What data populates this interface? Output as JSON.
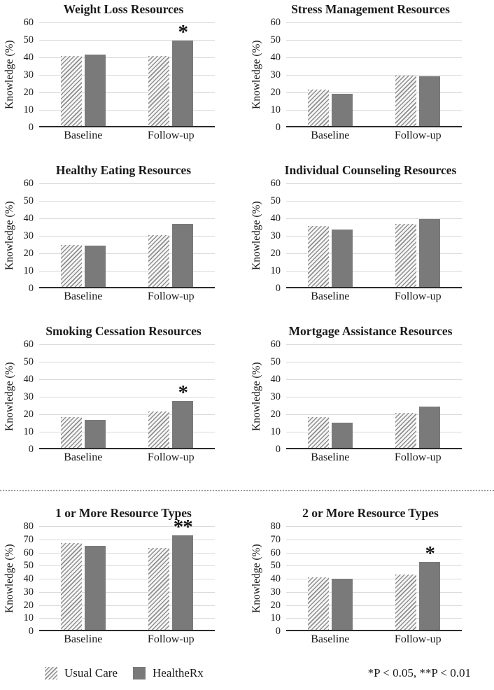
{
  "page": {
    "legend": {
      "items": [
        {
          "label": "Usual Care",
          "style": "hatched"
        },
        {
          "label": "HealtheRx",
          "style": "solid"
        }
      ],
      "footnote": "*P < 0.05, **P < 0.01"
    },
    "colors": {
      "solid_bar": "#7a7a7a",
      "hatch_stripe": "#8f8f8f",
      "hatch_bg": "#f6f6f6",
      "gridline": "#d9d9d9",
      "axis": "#2b2b2b",
      "divider_dot": "#999999"
    }
  },
  "chart_data": [
    {
      "type": "bar",
      "title": "Weight Loss Resources",
      "xlabel": "",
      "ylabel": "Knowledge (%)",
      "ylim": [
        0,
        60
      ],
      "yticks": [
        0,
        10,
        20,
        30,
        40,
        50,
        60
      ],
      "grid": true,
      "legend_position": "shared-bottom",
      "categories": [
        "Baseline",
        "Follow-up"
      ],
      "series": [
        {
          "name": "Usual Care",
          "style": "hatched",
          "values": [
            40,
            40
          ]
        },
        {
          "name": "HealtheRx",
          "style": "solid",
          "values": [
            41,
            49
          ]
        }
      ],
      "annotations": [
        {
          "category": "Follow-up",
          "series": "HealtheRx",
          "label": "*"
        }
      ]
    },
    {
      "type": "bar",
      "title": "Stress Management Resources",
      "xlabel": "",
      "ylabel": "Knowledge (%)",
      "ylim": [
        0,
        60
      ],
      "yticks": [
        0,
        10,
        20,
        30,
        40,
        50,
        60
      ],
      "grid": true,
      "legend_position": "shared-bottom",
      "categories": [
        "Baseline",
        "Follow-up"
      ],
      "series": [
        {
          "name": "Usual Care",
          "style": "hatched",
          "values": [
            21,
            29
          ]
        },
        {
          "name": "HealtheRx",
          "style": "solid",
          "values": [
            18.5,
            28.5
          ]
        }
      ],
      "annotations": []
    },
    {
      "type": "bar",
      "title": "Healthy Eating Resources",
      "xlabel": "",
      "ylabel": "Knowledge (%)",
      "ylim": [
        0,
        60
      ],
      "yticks": [
        0,
        10,
        20,
        30,
        40,
        50,
        60
      ],
      "grid": true,
      "legend_position": "shared-bottom",
      "categories": [
        "Baseline",
        "Follow-up"
      ],
      "series": [
        {
          "name": "Usual Care",
          "style": "hatched",
          "values": [
            24,
            29.5
          ]
        },
        {
          "name": "HealtheRx",
          "style": "solid",
          "values": [
            23.5,
            36
          ]
        }
      ],
      "annotations": []
    },
    {
      "type": "bar",
      "title": "Individual Counseling Resources",
      "xlabel": "",
      "ylabel": "Knowledge (%)",
      "ylim": [
        0,
        60
      ],
      "yticks": [
        0,
        10,
        20,
        30,
        40,
        50,
        60
      ],
      "grid": true,
      "legend_position": "shared-bottom",
      "categories": [
        "Baseline",
        "Follow-up"
      ],
      "series": [
        {
          "name": "Usual Care",
          "style": "hatched",
          "values": [
            35,
            36
          ]
        },
        {
          "name": "HealtheRx",
          "style": "solid",
          "values": [
            33,
            39
          ]
        }
      ],
      "annotations": []
    },
    {
      "type": "bar",
      "title": "Smoking Cessation Resources",
      "xlabel": "",
      "ylabel": "Knowledge (%)",
      "ylim": [
        0,
        60
      ],
      "yticks": [
        0,
        10,
        20,
        30,
        40,
        50,
        60
      ],
      "grid": true,
      "legend_position": "shared-bottom",
      "categories": [
        "Baseline",
        "Follow-up"
      ],
      "series": [
        {
          "name": "Usual Care",
          "style": "hatched",
          "values": [
            17.5,
            21
          ]
        },
        {
          "name": "HealtheRx",
          "style": "solid",
          "values": [
            16,
            27
          ]
        }
      ],
      "annotations": [
        {
          "category": "Follow-up",
          "series": "HealtheRx",
          "label": "*"
        }
      ]
    },
    {
      "type": "bar",
      "title": "Mortgage Assistance Resources",
      "xlabel": "",
      "ylabel": "Knowledge (%)",
      "ylim": [
        0,
        60
      ],
      "yticks": [
        0,
        10,
        20,
        30,
        40,
        50,
        60
      ],
      "grid": true,
      "legend_position": "shared-bottom",
      "categories": [
        "Baseline",
        "Follow-up"
      ],
      "series": [
        {
          "name": "Usual Care",
          "style": "hatched",
          "values": [
            17.5,
            20
          ]
        },
        {
          "name": "HealtheRx",
          "style": "solid",
          "values": [
            14.5,
            23.5
          ]
        }
      ],
      "annotations": []
    },
    {
      "type": "bar",
      "title": "1 or More Resource Types",
      "xlabel": "",
      "ylabel": "Knowledge (%)",
      "ylim": [
        0,
        80
      ],
      "yticks": [
        0,
        10,
        20,
        30,
        40,
        50,
        60,
        70,
        80
      ],
      "grid": true,
      "legend_position": "shared-bottom",
      "categories": [
        "Baseline",
        "Follow-up"
      ],
      "series": [
        {
          "name": "Usual Care",
          "style": "hatched",
          "values": [
            66,
            62.5
          ]
        },
        {
          "name": "HealtheRx",
          "style": "solid",
          "values": [
            64,
            72
          ]
        }
      ],
      "annotations": [
        {
          "category": "Follow-up",
          "series": "HealtheRx",
          "label": "**"
        }
      ]
    },
    {
      "type": "bar",
      "title": "2 or More Resource Types",
      "xlabel": "",
      "ylabel": "Knowledge (%)",
      "ylim": [
        0,
        80
      ],
      "yticks": [
        0,
        10,
        20,
        30,
        40,
        50,
        60,
        70,
        80
      ],
      "grid": true,
      "legend_position": "shared-bottom",
      "categories": [
        "Baseline",
        "Follow-up"
      ],
      "series": [
        {
          "name": "Usual Care",
          "style": "hatched",
          "values": [
            40,
            42
          ]
        },
        {
          "name": "HealtheRx",
          "style": "solid",
          "values": [
            39,
            51.5
          ]
        }
      ],
      "annotations": [
        {
          "category": "Follow-up",
          "series": "HealtheRx",
          "label": "*"
        }
      ]
    }
  ]
}
